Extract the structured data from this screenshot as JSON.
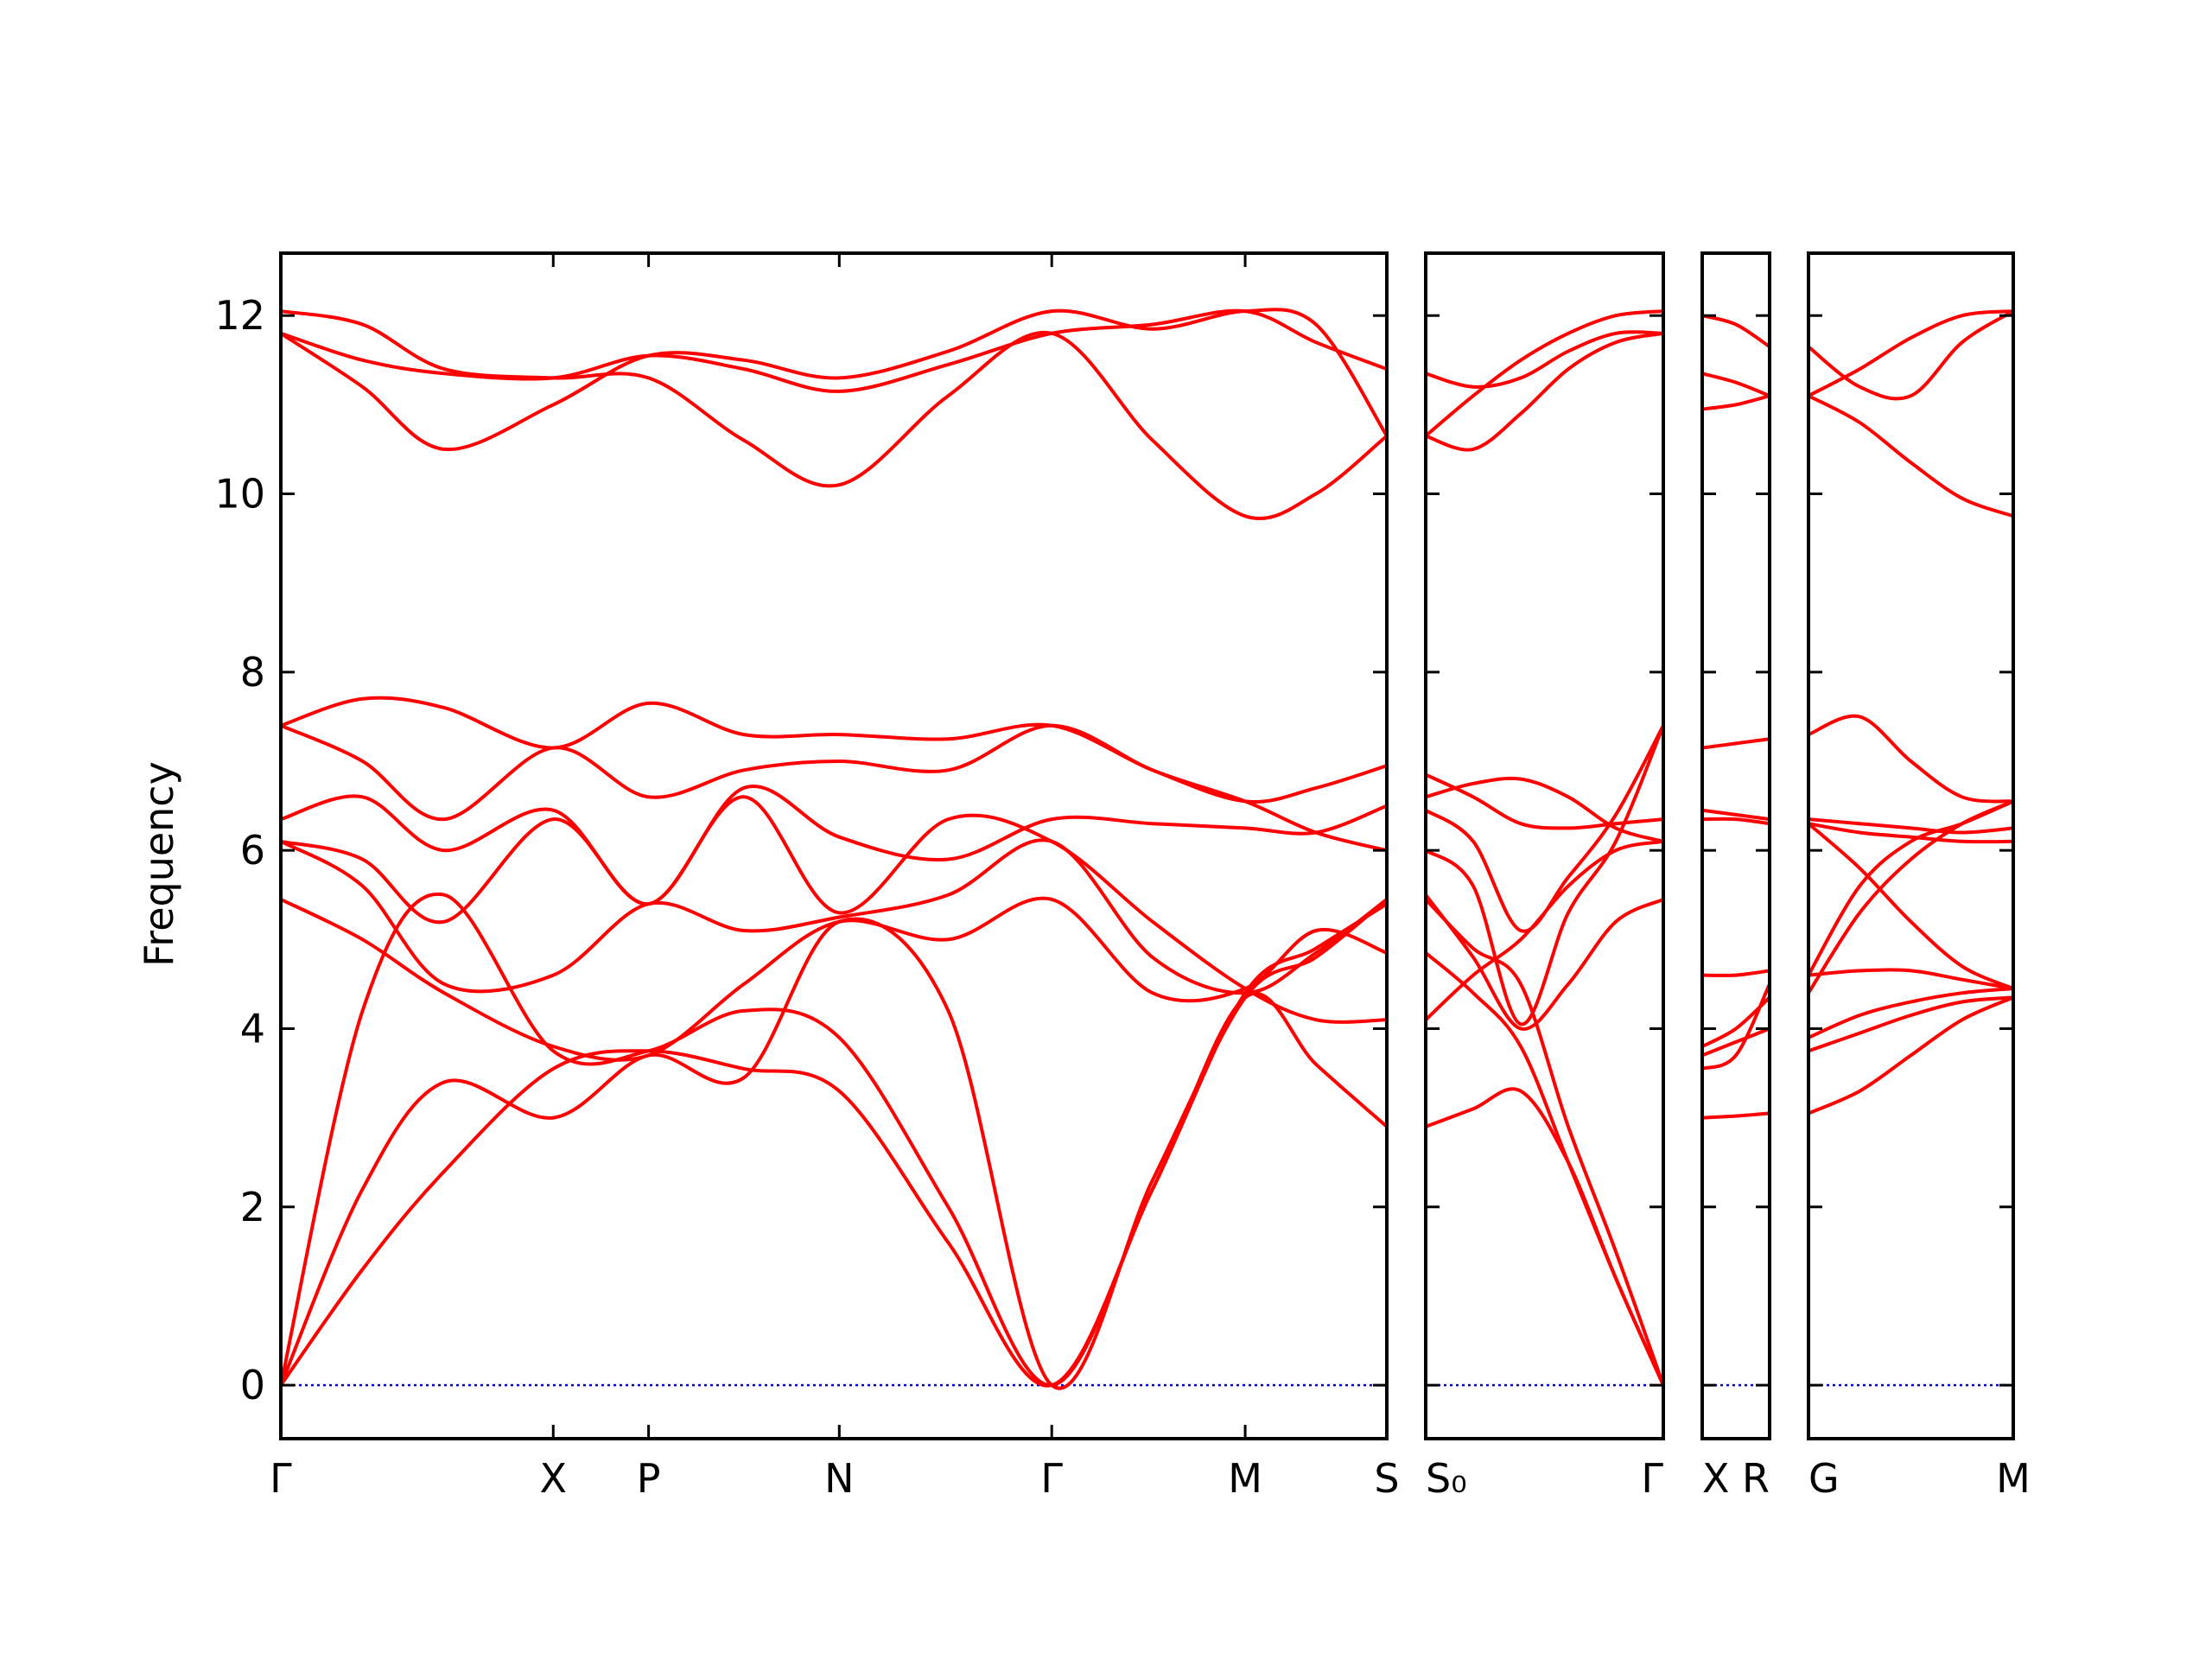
{
  "chart_data": {
    "type": "line",
    "title": "",
    "ylabel": "Frequency",
    "ylim": [
      -0.6,
      12.7
    ],
    "yticks": [
      0,
      2,
      4,
      6,
      8,
      10,
      12
    ],
    "line_color": "#ff0000",
    "zero_line_color": "#0000cc",
    "grid": false,
    "panels": [
      {
        "id": "panel1",
        "x_ticks": [
          {
            "x": 0.0,
            "label": "Γ"
          },
          {
            "x": 1.0,
            "label": "X"
          },
          {
            "x": 1.35,
            "label": "P"
          },
          {
            "x": 2.05,
            "label": "N"
          },
          {
            "x": 2.83,
            "label": "Γ"
          },
          {
            "x": 3.54,
            "label": "M"
          },
          {
            "x": 4.06,
            "label": "S"
          }
        ],
        "xlim": [
          0.0,
          4.06
        ],
        "series": [
          {
            "x": [
              0,
              0.3,
              0.6,
              1.0,
              1.35,
              1.7,
              2.05,
              2.45,
              2.83,
              3.2,
              3.54,
              3.8,
              4.06
            ],
            "values": [
              12.05,
              11.9,
              11.4,
              11.3,
              11.3,
              10.6,
              10.1,
              11.1,
              11.8,
              10.6,
              9.75,
              10.0,
              10.65
            ]
          },
          {
            "x": [
              0,
              0.3,
              0.6,
              1.0,
              1.35,
              1.7,
              2.05,
              2.45,
              2.83,
              3.2,
              3.54,
              3.8,
              4.06
            ],
            "values": [
              11.8,
              11.5,
              11.35,
              11.3,
              11.55,
              11.4,
              11.15,
              11.45,
              11.8,
              11.9,
              12.05,
              11.7,
              11.4
            ]
          },
          {
            "x": [
              0,
              0.3,
              0.6,
              1.0,
              1.35,
              1.7,
              2.05,
              2.45,
              2.83,
              3.2,
              3.54,
              3.8,
              4.06
            ],
            "values": [
              11.8,
              11.2,
              10.5,
              11.0,
              11.55,
              11.5,
              11.3,
              11.6,
              12.05,
              11.85,
              12.05,
              11.9,
              10.65
            ]
          },
          {
            "x": [
              0,
              0.3,
              0.6,
              1.0,
              1.35,
              1.7,
              2.05,
              2.45,
              2.83,
              3.2,
              3.54,
              3.8,
              4.06
            ],
            "values": [
              7.4,
              7.7,
              7.6,
              7.15,
              7.65,
              7.3,
              7.3,
              7.25,
              7.4,
              6.9,
              6.55,
              6.7,
              6.95
            ]
          },
          {
            "x": [
              0,
              0.3,
              0.6,
              1.0,
              1.35,
              1.7,
              2.05,
              2.45,
              2.83,
              3.2,
              3.54,
              3.8,
              4.06
            ],
            "values": [
              7.4,
              7.0,
              6.35,
              7.15,
              6.6,
              6.9,
              7.0,
              6.9,
              7.4,
              6.9,
              6.55,
              6.2,
              6.0
            ]
          },
          {
            "x": [
              0,
              0.3,
              0.6,
              1.0,
              1.35,
              1.7,
              2.05,
              2.45,
              2.83,
              3.2,
              3.54,
              3.8,
              4.06
            ],
            "values": [
              6.35,
              6.6,
              6.0,
              6.45,
              5.4,
              6.7,
              6.15,
              5.9,
              6.35,
              6.3,
              6.25,
              6.2,
              6.5
            ]
          },
          {
            "x": [
              0,
              0.3,
              0.6,
              1.0,
              1.35,
              1.7,
              2.05,
              2.45,
              2.83,
              3.2,
              3.54,
              3.8,
              4.06
            ],
            "values": [
              6.1,
              5.9,
              5.2,
              6.35,
              5.4,
              6.6,
              5.3,
              6.35,
              6.1,
              5.2,
              4.45,
              4.1,
              4.1
            ]
          },
          {
            "x": [
              0,
              0.3,
              0.6,
              1.0,
              1.35,
              1.7,
              2.05,
              2.45,
              2.83,
              3.2,
              3.54,
              3.8,
              4.06
            ],
            "values": [
              6.1,
              5.6,
              4.5,
              4.6,
              5.4,
              5.1,
              5.25,
              5.5,
              6.1,
              4.8,
              4.4,
              4.85,
              5.45
            ]
          },
          {
            "x": [
              0,
              0.3,
              0.6,
              1.0,
              1.35,
              1.7,
              2.05,
              2.45,
              2.83,
              3.2,
              3.54,
              3.8,
              4.06
            ],
            "values": [
              5.45,
              5.0,
              4.4,
              3.8,
              3.7,
              4.5,
              5.2,
              5.0,
              5.45,
              4.4,
              4.45,
              5.1,
              4.85
            ]
          },
          {
            "x": [
              0,
              0.3,
              0.6,
              1.0,
              1.35,
              1.7,
              2.05,
              2.45,
              2.83,
              3.2,
              3.54,
              3.8,
              4.06
            ],
            "values": [
              0,
              4.2,
              5.5,
              3.75,
              3.75,
              4.2,
              3.9,
              2.0,
              0,
              2.2,
              4.35,
              3.6,
              2.9
            ]
          },
          {
            "x": [
              0,
              0.3,
              0.6,
              1.0,
              1.35,
              1.7,
              2.05,
              2.45,
              2.83,
              3.2,
              3.54,
              3.8,
              4.06
            ],
            "values": [
              0,
              2.2,
              3.4,
              3.0,
              3.7,
              3.45,
              5.2,
              4.2,
              0,
              2.3,
              4.35,
              4.8,
              5.45
            ]
          },
          {
            "x": [
              0,
              0.3,
              0.6,
              1.0,
              1.35,
              1.7,
              2.05,
              2.45,
              2.83,
              3.2,
              3.54,
              3.8,
              4.06
            ],
            "values": [
              0,
              1.3,
              2.4,
              3.55,
              3.75,
              3.55,
              3.3,
              1.6,
              0,
              2.2,
              4.4,
              4.9,
              5.4
            ]
          }
        ]
      },
      {
        "id": "panel2",
        "x_ticks": [
          {
            "x": 0.0,
            "label": "S₀"
          },
          {
            "x": 1.0,
            "label": "Γ"
          }
        ],
        "xlim": [
          0.0,
          1.0
        ],
        "series": [
          {
            "x": [
              0,
              0.2,
              0.4,
              0.6,
              0.8,
              1.0
            ],
            "values": [
              10.65,
              10.5,
              10.9,
              11.4,
              11.7,
              11.8
            ]
          },
          {
            "x": [
              0,
              0.2,
              0.4,
              0.6,
              0.8,
              1.0
            ],
            "values": [
              10.65,
              11.1,
              11.5,
              11.8,
              12.0,
              12.05
            ]
          },
          {
            "x": [
              0,
              0.2,
              0.4,
              0.6,
              0.8,
              1.0
            ],
            "values": [
              11.35,
              11.2,
              11.3,
              11.6,
              11.8,
              11.8
            ]
          },
          {
            "x": [
              0,
              0.2,
              0.4,
              0.6,
              0.8,
              1.0
            ],
            "values": [
              6.85,
              6.6,
              6.3,
              6.25,
              6.3,
              6.35
            ]
          },
          {
            "x": [
              0,
              0.2,
              0.4,
              0.6,
              0.8,
              1.0
            ],
            "values": [
              6.6,
              6.75,
              6.8,
              6.6,
              6.25,
              6.1
            ]
          },
          {
            "x": [
              0,
              0.2,
              0.4,
              0.6,
              0.8,
              1.0
            ],
            "values": [
              6.45,
              6.1,
              5.1,
              5.7,
              6.4,
              7.4
            ]
          },
          {
            "x": [
              0,
              0.2,
              0.4,
              0.6,
              0.8,
              1.0
            ],
            "values": [
              6.0,
              5.6,
              4.05,
              5.3,
              6.1,
              7.4
            ]
          },
          {
            "x": [
              0,
              0.2,
              0.4,
              0.6,
              0.8,
              1.0
            ],
            "values": [
              5.5,
              4.8,
              4.0,
              4.5,
              5.2,
              5.45
            ]
          },
          {
            "x": [
              0,
              0.2,
              0.4,
              0.6,
              0.8,
              1.0
            ],
            "values": [
              4.1,
              4.6,
              5.0,
              5.6,
              6.0,
              6.1
            ]
          },
          {
            "x": [
              0,
              0.2,
              0.4,
              0.6,
              0.8,
              1.0
            ],
            "values": [
              4.85,
              4.4,
              3.8,
              2.5,
              1.2,
              0
            ]
          },
          {
            "x": [
              0,
              0.2,
              0.4,
              0.6,
              0.8,
              1.0
            ],
            "values": [
              5.45,
              4.9,
              4.5,
              2.9,
              1.5,
              0
            ]
          },
          {
            "x": [
              0,
              0.2,
              0.4,
              0.6,
              0.8,
              1.0
            ],
            "values": [
              2.9,
              3.1,
              3.3,
              2.5,
              1.2,
              0
            ]
          }
        ]
      },
      {
        "id": "panel3",
        "x_ticks": [
          {
            "x": 0.0,
            "label": "X"
          },
          {
            "x": 1.0,
            "label": "R"
          }
        ],
        "xlim": [
          0.0,
          1.0
        ],
        "series": [
          {
            "x": [
              0,
              0.5,
              1.0
            ],
            "values": [
              12.0,
              11.9,
              11.65
            ]
          },
          {
            "x": [
              0,
              0.5,
              1.0
            ],
            "values": [
              11.35,
              11.25,
              11.1
            ]
          },
          {
            "x": [
              0,
              0.5,
              1.0
            ],
            "values": [
              10.95,
              11.0,
              11.1
            ]
          },
          {
            "x": [
              0,
              0.5,
              1.0
            ],
            "values": [
              7.15,
              7.2,
              7.25
            ]
          },
          {
            "x": [
              0,
              0.5,
              1.0
            ],
            "values": [
              6.45,
              6.4,
              6.35
            ]
          },
          {
            "x": [
              0,
              0.5,
              1.0
            ],
            "values": [
              6.35,
              6.35,
              6.3
            ]
          },
          {
            "x": [
              0,
              0.5,
              1.0
            ],
            "values": [
              4.6,
              4.6,
              4.65
            ]
          },
          {
            "x": [
              0,
              0.5,
              1.0
            ],
            "values": [
              3.8,
              4.0,
              4.35
            ]
          },
          {
            "x": [
              0,
              0.5,
              1.0
            ],
            "values": [
              3.7,
              3.85,
              4.0
            ]
          },
          {
            "x": [
              0,
              0.5,
              1.0
            ],
            "values": [
              3.55,
              3.7,
              4.5
            ]
          },
          {
            "x": [
              0,
              0.5,
              1.0
            ],
            "values": [
              3.0,
              3.02,
              3.05
            ]
          }
        ]
      },
      {
        "id": "panel4",
        "x_ticks": [
          {
            "x": 0.0,
            "label": "G"
          },
          {
            "x": 1.0,
            "label": "M"
          }
        ],
        "xlim": [
          0.0,
          1.0
        ],
        "series": [
          {
            "x": [
              0,
              0.25,
              0.5,
              0.75,
              1.0
            ],
            "values": [
              11.65,
              11.2,
              11.1,
              11.7,
              12.05
            ]
          },
          {
            "x": [
              0,
              0.25,
              0.5,
              0.75,
              1.0
            ],
            "values": [
              11.1,
              11.4,
              11.75,
              12.0,
              12.05
            ]
          },
          {
            "x": [
              0,
              0.25,
              0.5,
              0.75,
              1.0
            ],
            "values": [
              11.1,
              10.8,
              10.35,
              9.95,
              9.75
            ]
          },
          {
            "x": [
              0,
              0.25,
              0.5,
              0.75,
              1.0
            ],
            "values": [
              7.3,
              7.5,
              7.0,
              6.6,
              6.55
            ]
          },
          {
            "x": [
              0,
              0.25,
              0.5,
              0.75,
              1.0
            ],
            "values": [
              6.35,
              6.3,
              6.25,
              6.2,
              6.25
            ]
          },
          {
            "x": [
              0,
              0.25,
              0.5,
              0.75,
              1.0
            ],
            "values": [
              6.3,
              6.2,
              6.15,
              6.1,
              6.1
            ]
          },
          {
            "x": [
              0,
              0.25,
              0.5,
              0.75,
              1.0
            ],
            "values": [
              6.3,
              5.8,
              5.2,
              4.7,
              4.45
            ]
          },
          {
            "x": [
              0,
              0.25,
              0.5,
              0.75,
              1.0
            ],
            "values": [
              4.6,
              5.6,
              6.1,
              6.3,
              6.55
            ]
          },
          {
            "x": [
              0,
              0.25,
              0.5,
              0.75,
              1.0
            ],
            "values": [
              4.4,
              5.3,
              5.9,
              6.3,
              6.55
            ]
          },
          {
            "x": [
              0,
              0.25,
              0.5,
              0.75,
              1.0
            ],
            "values": [
              4.6,
              4.65,
              4.65,
              4.55,
              4.45
            ]
          },
          {
            "x": [
              0,
              0.25,
              0.5,
              0.75,
              1.0
            ],
            "values": [
              3.9,
              4.15,
              4.3,
              4.4,
              4.45
            ]
          },
          {
            "x": [
              0,
              0.25,
              0.5,
              0.75,
              1.0
            ],
            "values": [
              3.75,
              3.95,
              4.15,
              4.3,
              4.35
            ]
          },
          {
            "x": [
              0,
              0.25,
              0.5,
              0.75,
              1.0
            ],
            "values": [
              3.05,
              3.3,
              3.7,
              4.1,
              4.35
            ]
          }
        ]
      }
    ]
  }
}
